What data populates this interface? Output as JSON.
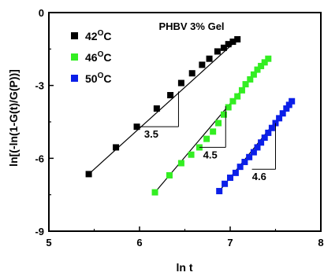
{
  "chart_data": {
    "type": "scatter",
    "title": "PHBV 3% Gel",
    "xlabel": "ln t",
    "ylabel": "ln[(-ln(1-G(t)/G(P))]",
    "xlim": [
      5,
      8
    ],
    "ylim": [
      -9,
      0
    ],
    "x_ticks": [
      5,
      6,
      7,
      8
    ],
    "x_tick_labels": [
      "5",
      "6",
      "7",
      "8"
    ],
    "y_ticks": [
      0,
      -3,
      -6,
      -9
    ],
    "y_tick_labels": [
      "0",
      "-3",
      "-6",
      "-9"
    ],
    "grid": false,
    "legend_position": "top-left",
    "series": [
      {
        "name": "42",
        "unit": "O",
        "unit_suffix": "C",
        "color": "#000000",
        "x": [
          5.44,
          5.74,
          5.97,
          6.19,
          6.34,
          6.46,
          6.58,
          6.69,
          6.77,
          6.86,
          6.93,
          6.98,
          7.03,
          7.08
        ],
        "y": [
          -6.65,
          -5.55,
          -4.7,
          -3.95,
          -3.4,
          -2.9,
          -2.5,
          -2.15,
          -1.9,
          -1.6,
          -1.45,
          -1.3,
          -1.2,
          -1.1
        ],
        "fit": [
          [
            5.44,
            -6.65
          ],
          [
            7.1,
            -1.05
          ]
        ]
      },
      {
        "name": "46",
        "unit": "O",
        "unit_suffix": "C",
        "color": "#33ee22",
        "x": [
          6.17,
          6.33,
          6.46,
          6.57,
          6.66,
          6.74,
          6.81,
          6.87,
          6.93,
          6.98,
          7.03,
          7.08,
          7.13,
          7.17,
          7.22,
          7.26,
          7.3,
          7.34,
          7.38,
          7.42
        ],
        "y": [
          -7.4,
          -6.7,
          -6.2,
          -5.85,
          -5.55,
          -5.2,
          -4.9,
          -4.55,
          -4.2,
          -3.9,
          -3.65,
          -3.45,
          -3.2,
          -2.95,
          -2.75,
          -2.55,
          -2.35,
          -2.2,
          -2.05,
          -1.9
        ],
        "fit": [
          [
            6.17,
            -7.4
          ],
          [
            7.42,
            -1.9
          ]
        ]
      },
      {
        "name": "50",
        "unit": "O",
        "unit_suffix": "C",
        "color": "#0b1fe8",
        "x": [
          6.88,
          6.94,
          7.0,
          7.06,
          7.11,
          7.16,
          7.21,
          7.26,
          7.3,
          7.34,
          7.38,
          7.42,
          7.46,
          7.5,
          7.54,
          7.58,
          7.62,
          7.65,
          7.68
        ],
        "y": [
          -7.35,
          -7.05,
          -6.8,
          -6.6,
          -6.35,
          -6.15,
          -5.95,
          -5.75,
          -5.55,
          -5.35,
          -5.15,
          -4.95,
          -4.75,
          -4.55,
          -4.35,
          -4.15,
          -3.95,
          -3.8,
          -3.65
        ],
        "fit": [
          [
            6.88,
            -7.35
          ],
          [
            7.68,
            -3.65
          ]
        ]
      }
    ],
    "slope_annotations": [
      {
        "label": "3.5",
        "corner": [
          6.43,
          -4.7
        ],
        "y_top": -3.25,
        "x_left": 5.97,
        "label_at": [
          6.13,
          -5.15
        ]
      },
      {
        "label": "4.5",
        "corner": [
          6.95,
          -5.55
        ],
        "y_top": -3.85,
        "x_left": 6.66,
        "label_at": [
          6.78,
          -6.0
        ]
      },
      {
        "label": "4.6",
        "corner": [
          7.5,
          -6.45
        ],
        "y_top": -4.55,
        "x_left": 7.24,
        "label_at": [
          7.32,
          -6.9
        ]
      }
    ]
  }
}
